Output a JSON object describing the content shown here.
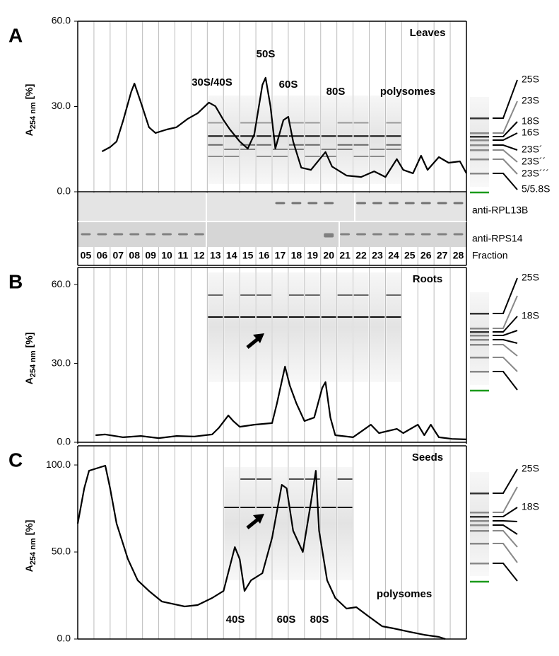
{
  "chart_data": [
    {
      "type": "line",
      "panel": "A",
      "title": "Leaves",
      "ylabel": {
        "main": "A",
        "sub": "254 nm",
        "unit": "[%]"
      },
      "ylim": [
        0,
        60
      ],
      "yticks": [
        {
          "value": 0,
          "label": "0.0"
        },
        {
          "value": 30,
          "label": "30.0"
        },
        {
          "value": 60,
          "label": "60.0"
        }
      ],
      "xlim": [
        4.5,
        28.5
      ],
      "x": [
        6.0,
        6.5,
        6.9,
        7.3,
        7.8,
        8.0,
        8.4,
        8.9,
        9.3,
        10.0,
        10.6,
        11.3,
        11.9,
        12.6,
        13.0,
        13.5,
        13.9,
        14.5,
        15.0,
        15.4,
        15.9,
        16.1,
        16.4,
        16.7,
        17.2,
        17.5,
        17.8,
        18.3,
        18.9,
        19.8,
        20.2,
        21.1,
        22.0,
        22.8,
        23.5,
        24.2,
        24.6,
        25.2,
        25.7,
        26.1,
        26.8,
        27.4,
        28.1,
        28.5
      ],
      "values": [
        14.2,
        15.7,
        17.7,
        25.0,
        35.1,
        38.1,
        31.4,
        22.7,
        20.7,
        21.9,
        22.7,
        25.7,
        27.6,
        31.4,
        30.1,
        25.2,
        21.9,
        17.7,
        15.2,
        20.2,
        37.6,
        40.1,
        30.1,
        15.2,
        25.2,
        26.4,
        17.7,
        8.5,
        7.7,
        14.0,
        8.9,
        5.7,
        5.2,
        7.2,
        5.2,
        11.5,
        7.7,
        6.5,
        12.7,
        7.7,
        12.2,
        10.2,
        10.7,
        6.5
      ],
      "color": "#000000",
      "annotations": [
        "50S",
        "30S/40S",
        "60S",
        "80S",
        "polysomes"
      ],
      "markers": [
        {
          "label": "25S",
          "color": "#000000"
        },
        {
          "label": "23S",
          "color": "#888888"
        },
        {
          "label": "18S",
          "color": "#000000"
        },
        {
          "label": "16S",
          "color": "#000000"
        },
        {
          "label": "23S´",
          "color": "#000000"
        },
        {
          "label": "23S´´",
          "color": "#000000"
        },
        {
          "label": "23S´´´",
          "color": "#888888"
        },
        {
          "label": "5/5.8S",
          "color": "#000000"
        }
      ],
      "blots": [
        "anti-RPL13B",
        "anti-RPS14"
      ],
      "fraction_label": "Fraction",
      "fractions": [
        "05",
        "06",
        "07",
        "08",
        "09",
        "10",
        "11",
        "12",
        "13",
        "14",
        "15",
        "16",
        "17",
        "18",
        "19",
        "20",
        "21",
        "22",
        "23",
        "24",
        "25",
        "26",
        "27",
        "28"
      ]
    },
    {
      "type": "line",
      "panel": "B",
      "title": "Roots",
      "ylabel": {
        "main": "A",
        "sub": "254 nm",
        "unit": "[%]"
      },
      "ylim": [
        0,
        66.5
      ],
      "yticks": [
        {
          "value": 0,
          "label": "0.0"
        },
        {
          "value": 30,
          "label": "30.0"
        },
        {
          "value": 60,
          "label": "60.0"
        }
      ],
      "xlim": [
        4.5,
        28.5
      ],
      "x": [
        5.6,
        6.2,
        7.3,
        8.4,
        9.5,
        10.6,
        11.7,
        12.8,
        13.2,
        13.8,
        14.1,
        14.5,
        15.4,
        16.5,
        16.8,
        17.3,
        17.6,
        18.0,
        18.5,
        19.1,
        19.6,
        19.8,
        20.1,
        20.4,
        21.5,
        22.6,
        23.1,
        24.2,
        24.6,
        25.5,
        25.9,
        26.3,
        26.8,
        27.6,
        28.5
      ],
      "values": [
        2.7,
        3.0,
        1.9,
        2.4,
        1.6,
        2.4,
        2.2,
        3.0,
        5.4,
        10.2,
        8.1,
        5.9,
        6.7,
        7.3,
        14.8,
        28.8,
        21.5,
        14.8,
        8.1,
        9.4,
        20.7,
        22.9,
        9.4,
        2.7,
        1.9,
        6.7,
        3.5,
        5.1,
        3.5,
        6.7,
        2.7,
        6.7,
        1.9,
        1.3,
        1.1
      ],
      "color": "#000000",
      "markers": [
        {
          "label": "25S",
          "color": "#000000"
        },
        {
          "label": "18S",
          "color": "#000000"
        }
      ]
    },
    {
      "type": "line",
      "panel": "C",
      "title": "Seeds",
      "ylabel": {
        "main": "A",
        "sub": "254 nm",
        "unit": "[%]"
      },
      "ylim": [
        0,
        111
      ],
      "yticks": [
        {
          "value": 0,
          "label": "0.0"
        },
        {
          "value": 50,
          "label": "50.0"
        },
        {
          "value": 100,
          "label": "100.0"
        }
      ],
      "xlim": [
        4.5,
        28.5
      ],
      "x": [
        4.5,
        4.9,
        5.2,
        6.2,
        6.5,
        6.9,
        7.6,
        8.2,
        8.9,
        9.7,
        11.1,
        11.9,
        12.8,
        13.5,
        13.9,
        14.2,
        14.5,
        14.8,
        15.2,
        15.9,
        16.5,
        17.1,
        17.4,
        17.8,
        18.4,
        18.9,
        19.2,
        19.4,
        19.9,
        20.4,
        21.1,
        21.7,
        22.4,
        23.3,
        24.0,
        25.0,
        25.9,
        26.8,
        27.2
      ],
      "values": [
        66.3,
        86.6,
        96.7,
        99.6,
        86.6,
        66.3,
        45.9,
        33.7,
        27.6,
        21.5,
        18.7,
        19.5,
        23.6,
        27.6,
        41.9,
        52.8,
        45.9,
        27.6,
        33.7,
        37.8,
        58.1,
        88.6,
        86.6,
        62.2,
        50.0,
        78.5,
        96.7,
        62.2,
        33.7,
        23.6,
        17.5,
        18.3,
        13.4,
        7.3,
        6.1,
        4.1,
        2.4,
        1.2,
        0
      ],
      "color": "#000000",
      "annotations": [
        "40S",
        "60S",
        "80S",
        "polysomes"
      ],
      "markers": [
        {
          "label": "25S",
          "color": "#000000"
        },
        {
          "label": "18S",
          "color": "#000000"
        }
      ]
    }
  ]
}
